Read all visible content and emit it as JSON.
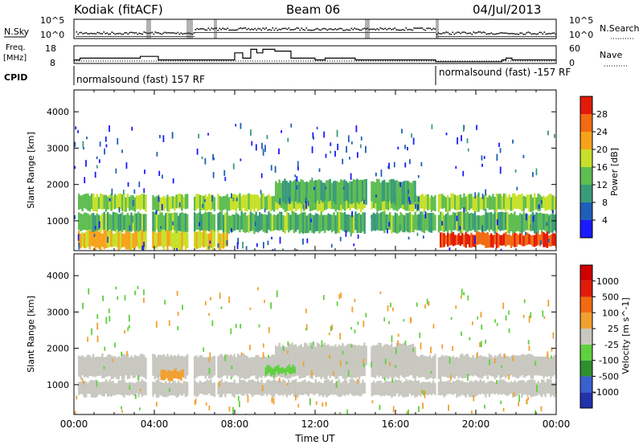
{
  "header": {
    "station": "Kodiak (fitACF)",
    "beam": "Beam 06",
    "date": "04/Jul/2013"
  },
  "status": {
    "nsky_label": "N.Sky",
    "nsky_ticks": [
      "10^5",
      "10^0"
    ],
    "nsearch_label": "N.Search",
    "nsearch_ticks": [
      "10^5",
      "10^0"
    ],
    "freq_label": "Freq.",
    "freq_unit": "[MHz]",
    "freq_ticks": [
      "18",
      "8"
    ],
    "nave_label": "Nave",
    "nave_ticks": [
      "60",
      "0"
    ],
    "cpid_label": "CPID",
    "cpid_segments": [
      {
        "start_hour": 0,
        "end_hour": 18,
        "text": "normalsound (fast) 157 RF"
      },
      {
        "start_hour": 18,
        "end_hour": 24,
        "text": "normalsound (fast) -157 RF"
      }
    ],
    "freq_steps": [
      [
        0,
        10
      ],
      [
        0.3,
        11
      ],
      [
        3.0,
        11
      ],
      [
        3.3,
        12
      ],
      [
        4.2,
        10
      ],
      [
        7.6,
        10
      ],
      [
        8.0,
        14
      ],
      [
        8.4,
        11
      ],
      [
        8.8,
        16
      ],
      [
        9.1,
        14
      ],
      [
        9.4,
        16
      ],
      [
        10.0,
        15
      ],
      [
        10.8,
        11
      ],
      [
        12.0,
        10
      ],
      [
        12.5,
        11
      ],
      [
        14.0,
        10
      ],
      [
        17.5,
        10
      ],
      [
        18.0,
        9
      ],
      [
        21.3,
        10
      ],
      [
        21.5,
        11
      ],
      [
        21.8,
        10
      ],
      [
        23.8,
        10
      ]
    ]
  },
  "chart_data": [
    {
      "type": "heatmap",
      "name": "power-panel",
      "title": "Power",
      "xlabel": "",
      "ylabel": "Slant Range [km]",
      "xlim": [
        0,
        24
      ],
      "ylim": [
        180,
        4600
      ],
      "x_tick_hours": [
        0,
        4,
        8,
        12,
        16,
        20,
        24
      ],
      "y_ticks": [
        1000,
        2000,
        3000,
        4000
      ],
      "colorbar": {
        "label": "Power [dB]",
        "tick_labels": [
          "4",
          "8",
          "12",
          "16",
          "20",
          "24",
          "28"
        ],
        "colors": [
          "#1a1aff",
          "#1f5fb8",
          "#3a9b7a",
          "#5fbd52",
          "#c7e02a",
          "#f7a21b",
          "#f26a12",
          "#e21a0a"
        ]
      },
      "bands": [
        {
          "range_km": [
            1300,
            1700
          ],
          "start_hour": 0.2,
          "end_hour": 24,
          "value": 16
        },
        {
          "range_km": [
            700,
            1200
          ],
          "start_hour": 0.2,
          "end_hour": 24,
          "value": 13
        },
        {
          "range_km": [
            250,
            700
          ],
          "start_hour": 0.2,
          "end_hour": 7.6,
          "value": 20
        },
        {
          "range_km": [
            300,
            650
          ],
          "start_hour": 18.2,
          "end_hour": 24,
          "value": 28
        },
        {
          "range_km": [
            1500,
            2100
          ],
          "start_hour": 10,
          "end_hour": 17,
          "value": 12
        }
      ],
      "data_gaps_hours": [
        [
          3.55,
          3.85
        ],
        [
          5.6,
          5.9
        ],
        [
          6.95,
          7.1
        ],
        [
          14.5,
          14.7
        ],
        [
          18.0,
          18.1
        ]
      ]
    },
    {
      "type": "heatmap",
      "name": "velocity-panel",
      "title": "Velocity",
      "xlabel": "Time UT",
      "ylabel": "Slant Range [km]",
      "xlim": [
        0,
        24
      ],
      "ylim": [
        180,
        4600
      ],
      "x_tick_labels": [
        "00:00",
        "04:00",
        "08:00",
        "12:00",
        "16:00",
        "20:00",
        "00:00"
      ],
      "y_ticks": [
        1000,
        2000,
        3000,
        4000
      ],
      "colorbar": {
        "label": "Velocity [m s^-1]",
        "tick_labels": [
          "1000",
          "500",
          "100",
          "25",
          "-25",
          "-100",
          "-500",
          "-1000"
        ],
        "colors": [
          "#2233aa",
          "#3a5fcf",
          "#2f8f2f",
          "#5fd03f",
          "#c8c8c0",
          "#f2a030",
          "#f26a12",
          "#e21a0a",
          "#d00000"
        ]
      },
      "bands": [
        {
          "range_km": [
            1200,
            1800
          ],
          "start_hour": 0.2,
          "end_hour": 24,
          "value": 0
        },
        {
          "range_km": [
            700,
            1100
          ],
          "start_hour": 0.2,
          "end_hour": 24,
          "value": 0
        },
        {
          "range_km": [
            1500,
            2100
          ],
          "start_hour": 10,
          "end_hour": 17,
          "value": 0
        },
        {
          "range_km": [
            1300,
            1500
          ],
          "start_hour": 9.5,
          "end_hour": 11,
          "value": 100
        },
        {
          "range_km": [
            1150,
            1400
          ],
          "start_hour": 4.3,
          "end_hour": 5.4,
          "value": -100
        }
      ],
      "data_gaps_hours": [
        [
          3.55,
          3.85
        ],
        [
          5.6,
          5.9
        ],
        [
          6.95,
          7.1
        ],
        [
          14.5,
          14.7
        ],
        [
          18.0,
          18.1
        ]
      ]
    }
  ]
}
